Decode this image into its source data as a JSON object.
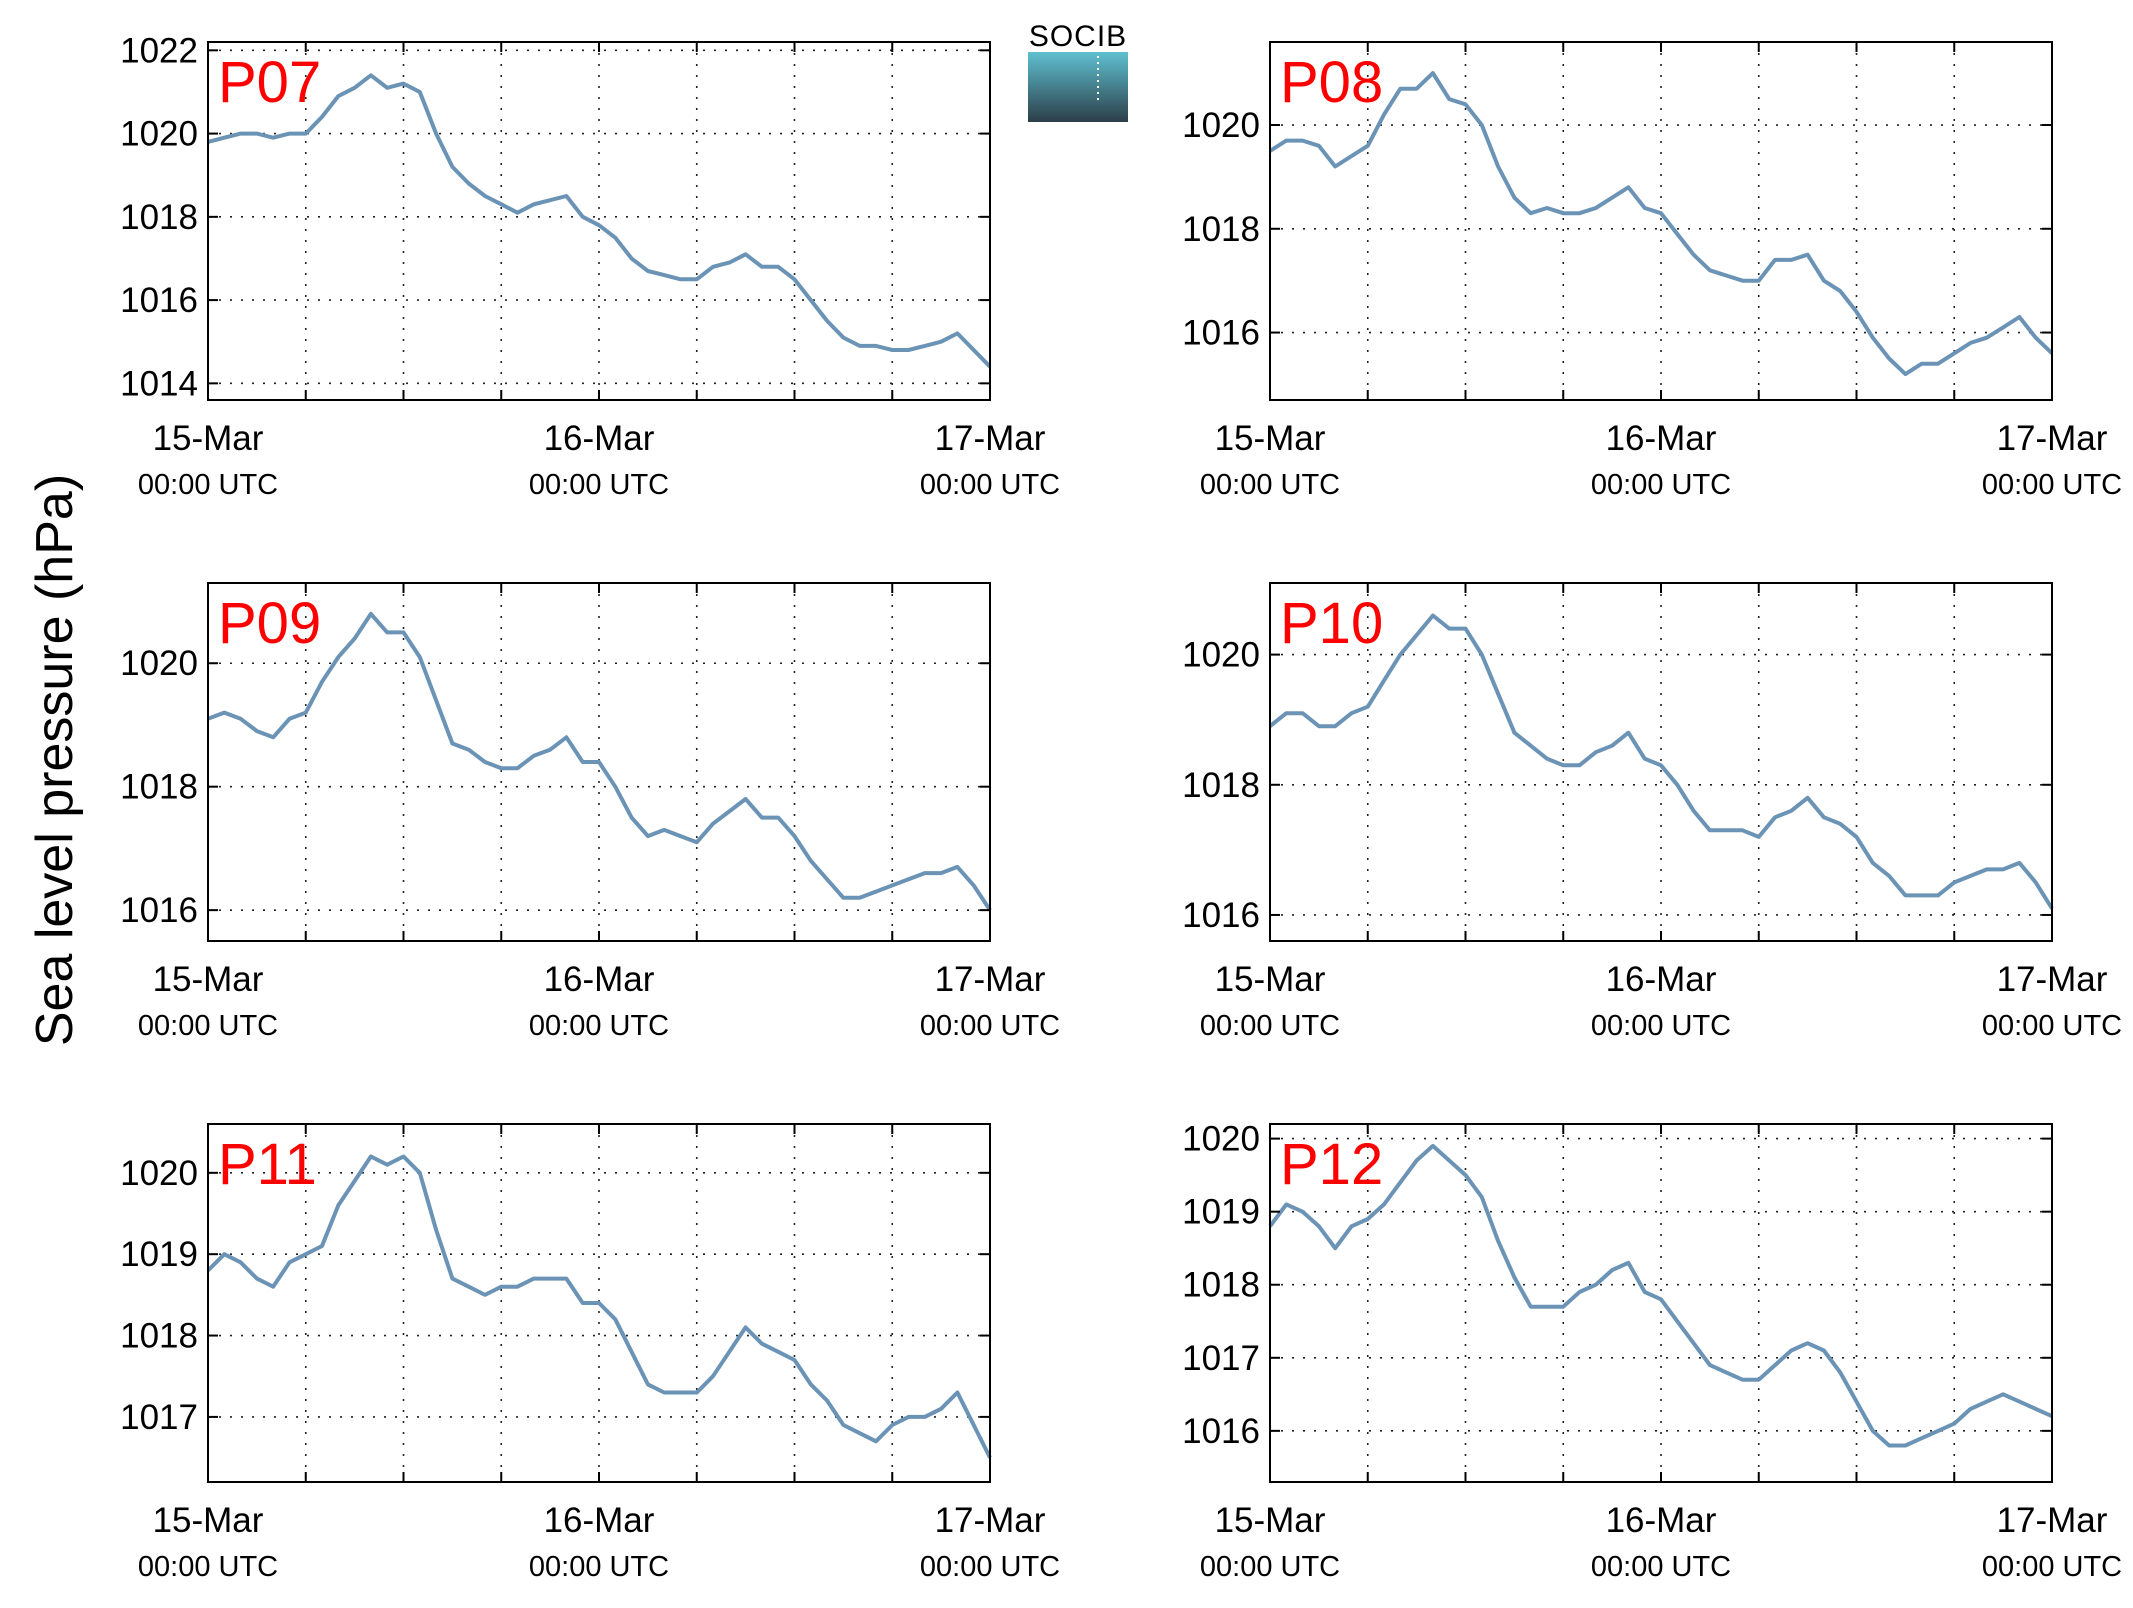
{
  "figure": {
    "ylabel": "Sea level pressure (hPa)",
    "logo_text": "SOCIB",
    "station_label_color": "#ff0000",
    "line_color": "#6b93b5",
    "logo_color_top": "#5fc0d0",
    "logo_color_bottom": "#2c3e48"
  },
  "chart_data": [
    {
      "type": "line",
      "title": "P07",
      "x_ticks": [
        {
          "date": "15-Mar",
          "time": "00:00 UTC"
        },
        {
          "date": "16-Mar",
          "time": "00:00 UTC"
        },
        {
          "date": "17-Mar",
          "time": "00:00 UTC"
        }
      ],
      "xlim_hours": [
        0,
        48
      ],
      "ylim": [
        1013.6,
        1022.2
      ],
      "yticks": [
        1014,
        1016,
        1018,
        1020,
        1022
      ],
      "grid": true,
      "series": [
        {
          "x_hours": [
            0,
            1,
            2,
            3,
            4,
            5,
            6,
            7,
            8,
            9,
            10,
            11,
            12,
            13,
            14,
            15,
            16,
            17,
            18,
            19,
            20,
            21,
            22,
            23,
            24,
            25,
            26,
            27,
            28,
            29,
            30,
            31,
            32,
            33,
            34,
            35,
            36,
            37,
            38,
            39,
            40,
            41,
            42,
            43,
            44,
            45,
            46,
            47,
            48
          ],
          "values": [
            1019.8,
            1019.9,
            1020.0,
            1020.0,
            1019.9,
            1020.0,
            1020.0,
            1020.4,
            1020.9,
            1021.1,
            1021.4,
            1021.1,
            1021.2,
            1021.0,
            1020.0,
            1019.2,
            1018.8,
            1018.5,
            1018.3,
            1018.1,
            1018.3,
            1018.4,
            1018.5,
            1018.0,
            1017.8,
            1017.5,
            1017.0,
            1016.7,
            1016.6,
            1016.5,
            1016.5,
            1016.8,
            1016.9,
            1017.1,
            1016.8,
            1016.8,
            1016.5,
            1016.0,
            1015.5,
            1015.1,
            1014.9,
            1014.9,
            1014.8,
            1014.8,
            1014.9,
            1015.0,
            1015.2,
            1014.8,
            1014.4
          ]
        }
      ]
    },
    {
      "type": "line",
      "title": "P08",
      "x_ticks": [
        {
          "date": "15-Mar",
          "time": "00:00 UTC"
        },
        {
          "date": "16-Mar",
          "time": "00:00 UTC"
        },
        {
          "date": "17-Mar",
          "time": "00:00 UTC"
        }
      ],
      "xlim_hours": [
        0,
        48
      ],
      "ylim": [
        1014.7,
        1021.6
      ],
      "yticks": [
        1016,
        1018,
        1020
      ],
      "grid": true,
      "series": [
        {
          "x_hours": [
            0,
            1,
            2,
            3,
            4,
            5,
            6,
            7,
            8,
            9,
            10,
            11,
            12,
            13,
            14,
            15,
            16,
            17,
            18,
            19,
            20,
            21,
            22,
            23,
            24,
            25,
            26,
            27,
            28,
            29,
            30,
            31,
            32,
            33,
            34,
            35,
            36,
            37,
            38,
            39,
            40,
            41,
            42,
            43,
            44,
            45,
            46,
            47,
            48
          ],
          "values": [
            1019.5,
            1019.7,
            1019.7,
            1019.6,
            1019.2,
            1019.4,
            1019.6,
            1020.2,
            1020.7,
            1020.7,
            1021.0,
            1020.5,
            1020.4,
            1020.0,
            1019.2,
            1018.6,
            1018.3,
            1018.4,
            1018.3,
            1018.3,
            1018.4,
            1018.6,
            1018.8,
            1018.4,
            1018.3,
            1017.9,
            1017.5,
            1017.2,
            1017.1,
            1017.0,
            1017.0,
            1017.4,
            1017.4,
            1017.5,
            1017.0,
            1016.8,
            1016.4,
            1015.9,
            1015.5,
            1015.2,
            1015.4,
            1015.4,
            1015.6,
            1015.8,
            1015.9,
            1016.1,
            1016.3,
            1015.9,
            1015.6
          ]
        }
      ]
    },
    {
      "type": "line",
      "title": "P09",
      "x_ticks": [
        {
          "date": "15-Mar",
          "time": "00:00 UTC"
        },
        {
          "date": "16-Mar",
          "time": "00:00 UTC"
        },
        {
          "date": "17-Mar",
          "time": "00:00 UTC"
        }
      ],
      "xlim_hours": [
        0,
        48
      ],
      "ylim": [
        1015.5,
        1021.3
      ],
      "yticks": [
        1016,
        1018,
        1020
      ],
      "grid": true,
      "series": [
        {
          "x_hours": [
            0,
            1,
            2,
            3,
            4,
            5,
            6,
            7,
            8,
            9,
            10,
            11,
            12,
            13,
            14,
            15,
            16,
            17,
            18,
            19,
            20,
            21,
            22,
            23,
            24,
            25,
            26,
            27,
            28,
            29,
            30,
            31,
            32,
            33,
            34,
            35,
            36,
            37,
            38,
            39,
            40,
            41,
            42,
            43,
            44,
            45,
            46,
            47,
            48
          ],
          "values": [
            1019.1,
            1019.2,
            1019.1,
            1018.9,
            1018.8,
            1019.1,
            1019.2,
            1019.7,
            1020.1,
            1020.4,
            1020.8,
            1020.5,
            1020.5,
            1020.1,
            1019.4,
            1018.7,
            1018.6,
            1018.4,
            1018.3,
            1018.3,
            1018.5,
            1018.6,
            1018.8,
            1018.4,
            1018.4,
            1018.0,
            1017.5,
            1017.2,
            1017.3,
            1017.2,
            1017.1,
            1017.4,
            1017.6,
            1017.8,
            1017.5,
            1017.5,
            1017.2,
            1016.8,
            1016.5,
            1016.2,
            1016.2,
            1016.3,
            1016.4,
            1016.5,
            1016.6,
            1016.6,
            1016.7,
            1016.4,
            1016.0
          ]
        }
      ]
    },
    {
      "type": "line",
      "title": "P10",
      "x_ticks": [
        {
          "date": "15-Mar",
          "time": "00:00 UTC"
        },
        {
          "date": "16-Mar",
          "time": "00:00 UTC"
        },
        {
          "date": "17-Mar",
          "time": "00:00 UTC"
        }
      ],
      "xlim_hours": [
        0,
        48
      ],
      "ylim": [
        1015.6,
        1021.1
      ],
      "yticks": [
        1016,
        1018,
        1020
      ],
      "grid": true,
      "series": [
        {
          "x_hours": [
            0,
            1,
            2,
            3,
            4,
            5,
            6,
            7,
            8,
            9,
            10,
            11,
            12,
            13,
            14,
            15,
            16,
            17,
            18,
            19,
            20,
            21,
            22,
            23,
            24,
            25,
            26,
            27,
            28,
            29,
            30,
            31,
            32,
            33,
            34,
            35,
            36,
            37,
            38,
            39,
            40,
            41,
            42,
            43,
            44,
            45,
            46,
            47,
            48
          ],
          "values": [
            1018.9,
            1019.1,
            1019.1,
            1018.9,
            1018.9,
            1019.1,
            1019.2,
            1019.6,
            1020.0,
            1020.3,
            1020.6,
            1020.4,
            1020.4,
            1020.0,
            1019.4,
            1018.8,
            1018.6,
            1018.4,
            1018.3,
            1018.3,
            1018.5,
            1018.6,
            1018.8,
            1018.4,
            1018.3,
            1018.0,
            1017.6,
            1017.3,
            1017.3,
            1017.3,
            1017.2,
            1017.5,
            1017.6,
            1017.8,
            1017.5,
            1017.4,
            1017.2,
            1016.8,
            1016.6,
            1016.3,
            1016.3,
            1016.3,
            1016.5,
            1016.6,
            1016.7,
            1016.7,
            1016.8,
            1016.5,
            1016.1
          ]
        }
      ]
    },
    {
      "type": "line",
      "title": "P11",
      "x_ticks": [
        {
          "date": "15-Mar",
          "time": "00:00 UTC"
        },
        {
          "date": "16-Mar",
          "time": "00:00 UTC"
        },
        {
          "date": "17-Mar",
          "time": "00:00 UTC"
        }
      ],
      "xlim_hours": [
        0,
        48
      ],
      "ylim": [
        1016.2,
        1020.6
      ],
      "yticks": [
        1017,
        1018,
        1019,
        1020
      ],
      "grid": true,
      "series": [
        {
          "x_hours": [
            0,
            1,
            2,
            3,
            4,
            5,
            6,
            7,
            8,
            9,
            10,
            11,
            12,
            13,
            14,
            15,
            16,
            17,
            18,
            19,
            20,
            21,
            22,
            23,
            24,
            25,
            26,
            27,
            28,
            29,
            30,
            31,
            32,
            33,
            34,
            35,
            36,
            37,
            38,
            39,
            40,
            41,
            42,
            43,
            44,
            45,
            46,
            47,
            48
          ],
          "values": [
            1018.8,
            1019.0,
            1018.9,
            1018.7,
            1018.6,
            1018.9,
            1019.0,
            1019.1,
            1019.6,
            1019.9,
            1020.2,
            1020.1,
            1020.2,
            1020.0,
            1019.3,
            1018.7,
            1018.6,
            1018.5,
            1018.6,
            1018.6,
            1018.7,
            1018.7,
            1018.7,
            1018.4,
            1018.4,
            1018.2,
            1017.8,
            1017.4,
            1017.3,
            1017.3,
            1017.3,
            1017.5,
            1017.8,
            1018.1,
            1017.9,
            1017.8,
            1017.7,
            1017.4,
            1017.2,
            1016.9,
            1016.8,
            1016.7,
            1016.9,
            1017.0,
            1017.0,
            1017.1,
            1017.3,
            1016.9,
            1016.5
          ]
        }
      ]
    },
    {
      "type": "line",
      "title": "P12",
      "x_ticks": [
        {
          "date": "15-Mar",
          "time": "00:00 UTC"
        },
        {
          "date": "16-Mar",
          "time": "00:00 UTC"
        },
        {
          "date": "17-Mar",
          "time": "00:00 UTC"
        }
      ],
      "xlim_hours": [
        0,
        48
      ],
      "ylim": [
        1015.3,
        1020.2
      ],
      "yticks": [
        1016,
        1017,
        1018,
        1019,
        1020
      ],
      "grid": true,
      "series": [
        {
          "x_hours": [
            0,
            1,
            2,
            3,
            4,
            5,
            6,
            7,
            8,
            9,
            10,
            11,
            12,
            13,
            14,
            15,
            16,
            17,
            18,
            19,
            20,
            21,
            22,
            23,
            24,
            25,
            26,
            27,
            28,
            29,
            30,
            31,
            32,
            33,
            34,
            35,
            36,
            37,
            38,
            39,
            40,
            41,
            42,
            43,
            44,
            45,
            46,
            47,
            48
          ],
          "values": [
            1018.8,
            1019.1,
            1019.0,
            1018.8,
            1018.5,
            1018.8,
            1018.9,
            1019.1,
            1019.4,
            1019.7,
            1019.9,
            1019.7,
            1019.5,
            1019.2,
            1018.6,
            1018.1,
            1017.7,
            1017.7,
            1017.7,
            1017.9,
            1018.0,
            1018.2,
            1018.3,
            1017.9,
            1017.8,
            1017.5,
            1017.2,
            1016.9,
            1016.8,
            1016.7,
            1016.7,
            1016.9,
            1017.1,
            1017.2,
            1017.1,
            1016.8,
            1016.4,
            1016.0,
            1015.8,
            1015.8,
            1015.9,
            1016.0,
            1016.1,
            1016.3,
            1016.4,
            1016.5,
            1016.4,
            1016.3,
            1016.2
          ]
        }
      ]
    }
  ]
}
